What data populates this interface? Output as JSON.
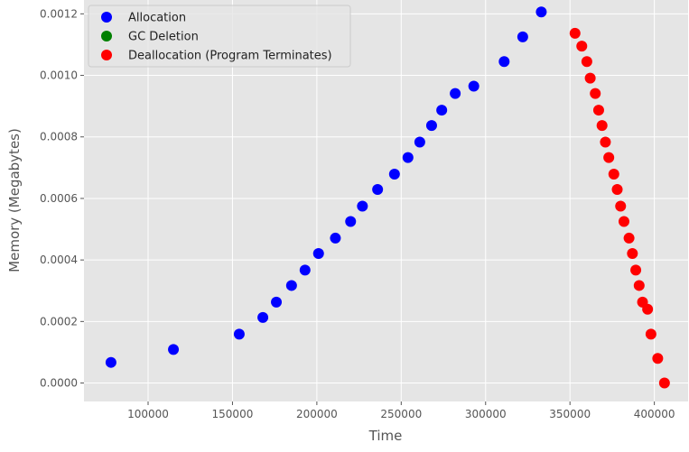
{
  "chart_data": {
    "type": "scatter",
    "xlabel": "Time",
    "ylabel": "Memory (Megabytes)",
    "xlim": [
      62000,
      420000
    ],
    "ylim": [
      -6e-05,
      0.001245
    ],
    "xticks": [
      100000,
      150000,
      200000,
      250000,
      300000,
      350000,
      400000
    ],
    "xtick_labels": [
      "100000",
      "150000",
      "200000",
      "250000",
      "300000",
      "350000",
      "400000"
    ],
    "yticks": [
      0.0,
      0.0002,
      0.0004,
      0.0006,
      0.0008,
      0.001,
      0.0012
    ],
    "ytick_labels": [
      "0.0000",
      "0.0002",
      "0.0004",
      "0.0006",
      "0.0008",
      "0.0010",
      "0.0012"
    ],
    "grid": true,
    "legend_position": "top-left",
    "series": [
      {
        "name": "Allocation",
        "color": "#0000ff",
        "points": [
          [
            78000,
            6.7e-05
          ],
          [
            115000,
            0.000109
          ],
          [
            154000,
            0.000159
          ],
          [
            168000,
            0.000213
          ],
          [
            176000,
            0.000263
          ],
          [
            185000,
            0.000317
          ],
          [
            193000,
            0.000367
          ],
          [
            201000,
            0.000421
          ],
          [
            211000,
            0.000471
          ],
          [
            220000,
            0.000525
          ],
          [
            227000,
            0.000575
          ],
          [
            236000,
            0.000629
          ],
          [
            246000,
            0.000679
          ],
          [
            254000,
            0.000733
          ],
          [
            261000,
            0.000783
          ],
          [
            268000,
            0.000837
          ],
          [
            274000,
            0.000887
          ],
          [
            282000,
            0.000941
          ],
          [
            293000,
            0.000965
          ],
          [
            311000,
            0.001045
          ],
          [
            322000,
            0.001125
          ],
          [
            333000,
            0.001206
          ]
        ]
      },
      {
        "name": "GC Deletion",
        "color": "#008000",
        "points": []
      },
      {
        "name": "Deallocation (Program Terminates)",
        "color": "#ff0000",
        "points": [
          [
            353000,
            0.001137
          ],
          [
            357000,
            0.001095
          ],
          [
            360000,
            0.001045
          ],
          [
            362000,
            0.000991
          ],
          [
            365000,
            0.000941
          ],
          [
            367000,
            0.000887
          ],
          [
            369000,
            0.000837
          ],
          [
            371000,
            0.000783
          ],
          [
            373000,
            0.000733
          ],
          [
            376000,
            0.000679
          ],
          [
            378000,
            0.000629
          ],
          [
            380000,
            0.000575
          ],
          [
            382000,
            0.000525
          ],
          [
            385000,
            0.000471
          ],
          [
            387000,
            0.000421
          ],
          [
            389000,
            0.000367
          ],
          [
            391000,
            0.000317
          ],
          [
            393000,
            0.000263
          ],
          [
            396000,
            0.00024
          ],
          [
            398000,
            0.000159
          ],
          [
            402000,
            8e-05
          ],
          [
            406000,
            0.0
          ]
        ]
      }
    ]
  }
}
